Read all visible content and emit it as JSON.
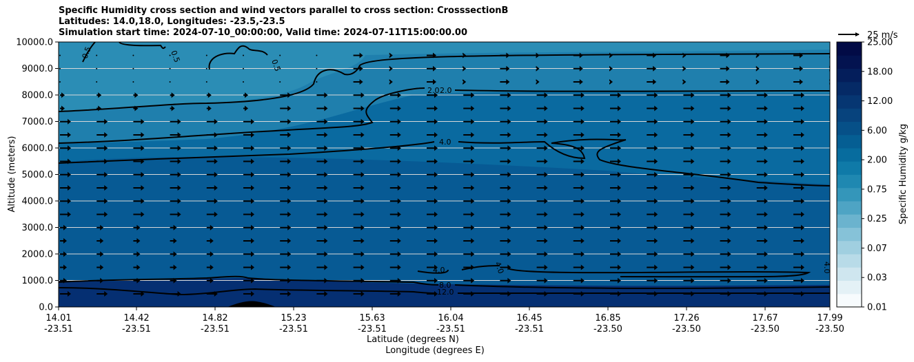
{
  "chart_data": {
    "type": "contour-cross-section",
    "title_lines": [
      "Specific Humidity cross section and wind vectors parallel to cross section: CrosssectionB",
      "Latitudes: 14.0,18.0, Longitudes: -23.5,-23.5",
      "Simulation start time: 2024-07-10_00:00:00, Valid time: 2024-07-11T15:00:00.00"
    ],
    "xlabel_lat": "Latitude (degrees N)",
    "xlabel_lon": "Longitude (degrees E)",
    "ylabel": "Altitude (meters)",
    "ylim": [
      0,
      10000
    ],
    "yticks": [
      "0.0",
      "1000.0",
      "2000.0",
      "3000.0",
      "4000.0",
      "5000.0",
      "6000.0",
      "7000.0",
      "8000.0",
      "9000.0",
      "10000.0"
    ],
    "xticks_lat": [
      "14.01",
      "14.42",
      "14.82",
      "15.23",
      "15.63",
      "16.04",
      "16.45",
      "16.85",
      "17.26",
      "17.67",
      "17.99"
    ],
    "xticks_lon": [
      "-23.51",
      "-23.51",
      "-23.51",
      "-23.51",
      "-23.51",
      "-23.51",
      "-23.51",
      "-23.50",
      "-23.50",
      "-23.50",
      "-23.50"
    ],
    "colorbar": {
      "label": "Specific Humidity g/kg",
      "ticks": [
        "0.01",
        "0.03",
        "0.07",
        "0.25",
        "0.75",
        "2.00",
        "6.00",
        "12.00",
        "18.00",
        "25.00"
      ]
    },
    "quiver_key": "25 m/s",
    "contour_labels": [
      "0.5",
      "0.5",
      "0.5",
      "2.0",
      "2.0",
      "4.0",
      "4.0",
      "4.0",
      "4.0",
      "8.0",
      "12.0"
    ],
    "colors": {
      "top_band": "#2b8db5",
      "upper_band": "#1f7fad",
      "mid_band": "#0a6aa0",
      "low_band": "#075a94",
      "surface_band": "#052f72",
      "grid": "#d9d9d9"
    }
  }
}
